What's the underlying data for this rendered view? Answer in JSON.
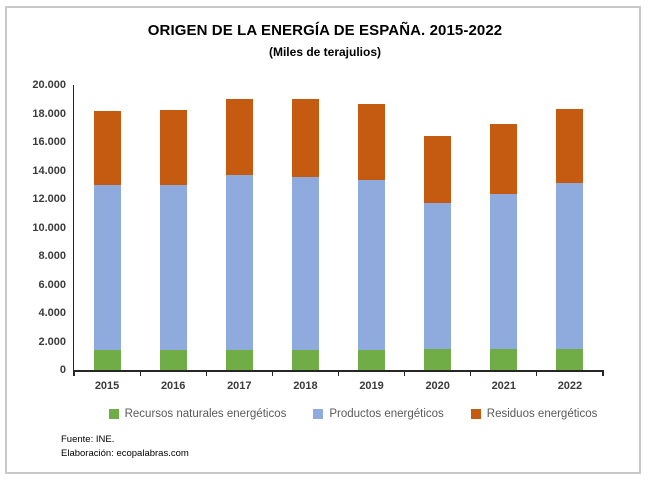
{
  "title": "ORIGEN DE LA ENERGÍA DE ESPAÑA. 2015-2022",
  "subtitle": "(Miles de terajulios)",
  "chart_data": {
    "type": "bar",
    "stacked": true,
    "title": "ORIGEN DE LA ENERGÍA DE ESPAÑA. 2015-2022",
    "subtitle": "(Miles de terajulios)",
    "unit": "Miles de terajulios",
    "categories": [
      "2015",
      "2016",
      "2017",
      "2018",
      "2019",
      "2020",
      "2021",
      "2022"
    ],
    "series": [
      {
        "name": "Recursos naturales energéticos",
        "color": "#70AD47",
        "values": [
          1400,
          1400,
          1400,
          1400,
          1400,
          1450,
          1450,
          1450
        ]
      },
      {
        "name": "Productos energéticos",
        "color": "#8FAADC",
        "values": [
          11600,
          11600,
          12250,
          12150,
          11900,
          10300,
          10900,
          11700
        ]
      },
      {
        "name": "Residuos energéticos",
        "color": "#C55A11",
        "values": [
          5200,
          5250,
          5350,
          5450,
          5400,
          4700,
          4900,
          5150
        ]
      }
    ],
    "totals": [
      18200,
      18250,
      19000,
      19000,
      18700,
      16450,
      17250,
      18300
    ],
    "ylim": [
      0,
      20000
    ],
    "ytick_step": 2000,
    "ytick_labels": [
      "0",
      "2.000",
      "4.000",
      "6.000",
      "8.000",
      "10.000",
      "12.000",
      "14.000",
      "16.000",
      "18.000",
      "20.000"
    ],
    "grid": false,
    "legend_position": "bottom"
  },
  "footer": {
    "source": "Fuente: INE.",
    "elaboration": "Elaboración: ecopalabras.com"
  }
}
